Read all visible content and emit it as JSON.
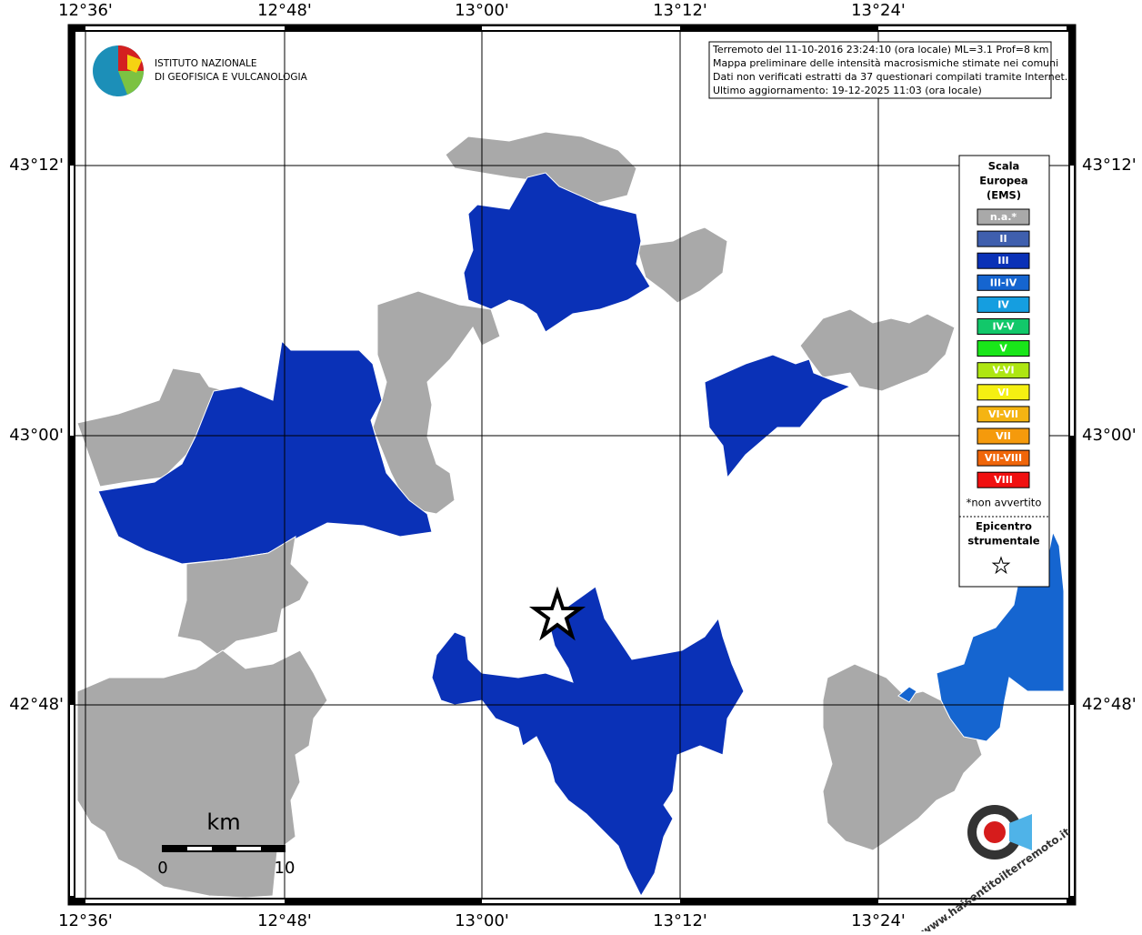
{
  "map": {
    "lon_labels": [
      "12°36'",
      "12°48'",
      "13°00'",
      "13°12'",
      "13°24'"
    ],
    "lat_labels": [
      "43°12'",
      "43°00'",
      "42°48'"
    ],
    "info_box": [
      "Terremoto del 11-10-2016 23:24:10 (ora locale) ML=3.1 Prof=8 km",
      "Mappa preliminare delle intensità macrosismiche stimate nei comuni",
      "Dati non verificati estratti da 37 questionari compilati tramite Internet.",
      "Ultimo aggiornamento: 19-12-2025 11:03 (ora locale)"
    ],
    "logo": [
      "ISTITUTO NAZIONALE",
      "DI GEOFISICA E VULCANOLOGIA"
    ],
    "legend": {
      "title": [
        "Scala",
        "Europea",
        "(EMS)"
      ],
      "items": [
        {
          "label": "n.a.*",
          "color": "#a9a9a9"
        },
        {
          "label": "II",
          "color": "#3f5fae"
        },
        {
          "label": "III",
          "color": "#0a31b7"
        },
        {
          "label": "III-IV",
          "color": "#1565d0"
        },
        {
          "label": "IV",
          "color": "#159ee0"
        },
        {
          "label": "IV-V",
          "color": "#12c86a"
        },
        {
          "label": "V",
          "color": "#19e619"
        },
        {
          "label": "V-VI",
          "color": "#aee612"
        },
        {
          "label": "VI",
          "color": "#f5f012"
        },
        {
          "label": "VI-VII",
          "color": "#f5b412"
        },
        {
          "label": "VII",
          "color": "#f59a0c"
        },
        {
          "label": "VII-VIII",
          "color": "#f0660a"
        },
        {
          "label": "VIII",
          "color": "#f01010"
        }
      ],
      "note": "*non avvertito",
      "epicenter": [
        "Epicentro",
        "strumentale"
      ]
    },
    "scale_bar": {
      "unit": "km",
      "start": "0",
      "end": "10"
    },
    "badge": "www.haisentitoilterremoto.it"
  }
}
